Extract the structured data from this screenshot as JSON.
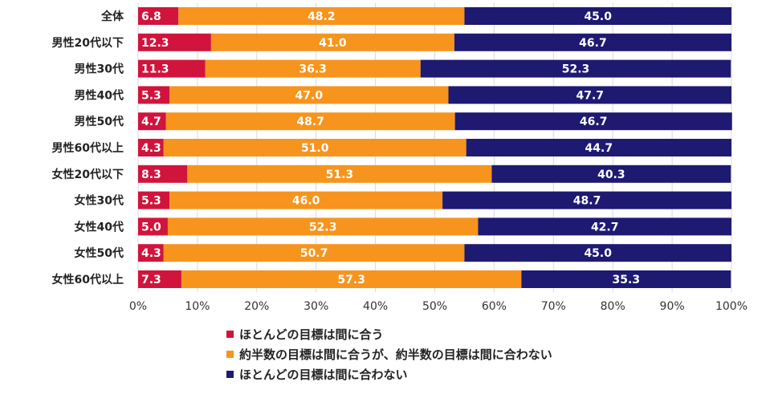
{
  "chart_data": {
    "type": "bar",
    "orientation": "horizontal-stacked-100",
    "title": "",
    "xlabel": "",
    "ylabel": "",
    "xlim": [
      0,
      100
    ],
    "x_ticks": [
      "0%",
      "10%",
      "20%",
      "30%",
      "40%",
      "50%",
      "60%",
      "70%",
      "80%",
      "90%",
      "100%"
    ],
    "categories": [
      "全体",
      "男性20代以下",
      "男性30代",
      "男性40代",
      "男性50代",
      "男性60代以上",
      "女性20代以下",
      "女性30代",
      "女性40代",
      "女性50代",
      "女性60代以上"
    ],
    "series": [
      {
        "name": "ほとんどの目標は間に合う",
        "color": "#d1143c",
        "values": [
          6.8,
          12.3,
          11.3,
          5.3,
          4.7,
          4.3,
          8.3,
          5.3,
          5.0,
          4.3,
          7.3
        ]
      },
      {
        "name": "約半数の目標は間に合うが、約半数の目標は間に合わない",
        "color": "#f7941d",
        "values": [
          48.2,
          41.0,
          36.3,
          47.0,
          48.7,
          51.0,
          51.3,
          46.0,
          52.3,
          50.7,
          57.3
        ]
      },
      {
        "name": "ほとんどの目標は間に合わない",
        "color": "#1e1a72",
        "values": [
          45.0,
          46.7,
          52.3,
          47.7,
          46.7,
          44.7,
          40.3,
          48.7,
          42.7,
          45.0,
          35.3
        ]
      }
    ],
    "legend_position": "bottom"
  }
}
